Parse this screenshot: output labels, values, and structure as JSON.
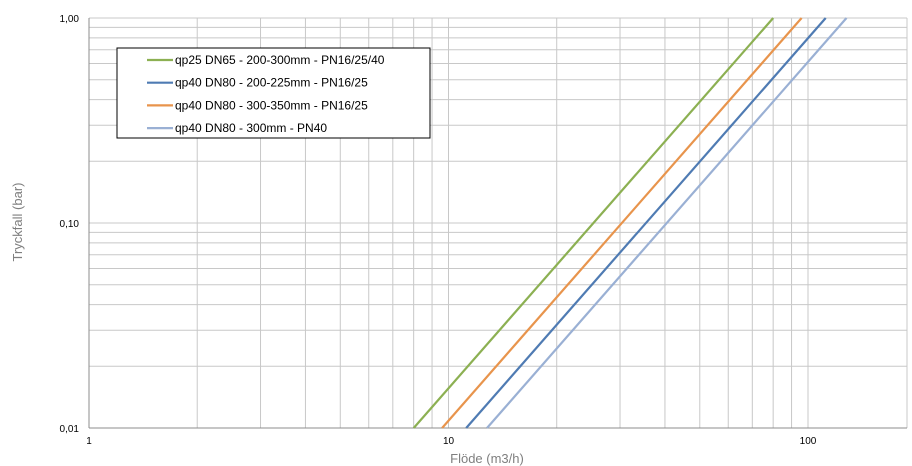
{
  "chart_data": {
    "type": "line",
    "title": "",
    "xlabel": "Flöde (m3/h)",
    "ylabel": "Tryckfall (bar)",
    "x_scale": "log",
    "y_scale": "log",
    "xlim": [
      1,
      200
    ],
    "ylim": [
      0.01,
      1
    ],
    "x_tick_labels": [
      "1",
      "10",
      "100"
    ],
    "y_tick_labels": [
      "0,01",
      "0,10",
      "1,00"
    ],
    "grid": true,
    "legend_position": "top-left",
    "series": [
      {
        "name": "qp25 DN65 - 200-300mm - PN16/25/40",
        "color": "#8cb052",
        "x": [
          8,
          80
        ],
        "y": [
          0.01,
          1.0
        ]
      },
      {
        "name": "qp40 DN80 - 200-225mm - PN16/25",
        "color": "#4f7bb3",
        "x": [
          11.2,
          112
        ],
        "y": [
          0.01,
          1.0
        ]
      },
      {
        "name": "qp40 DN80 - 300-350mm - PN16/25",
        "color": "#e8944c",
        "x": [
          9.6,
          96
        ],
        "y": [
          0.01,
          1.0
        ]
      },
      {
        "name": "qp40 DN80 - 300mm - PN40",
        "color": "#9ab0d4",
        "x": [
          12.8,
          128
        ],
        "y": [
          0.01,
          1.0
        ]
      }
    ]
  }
}
